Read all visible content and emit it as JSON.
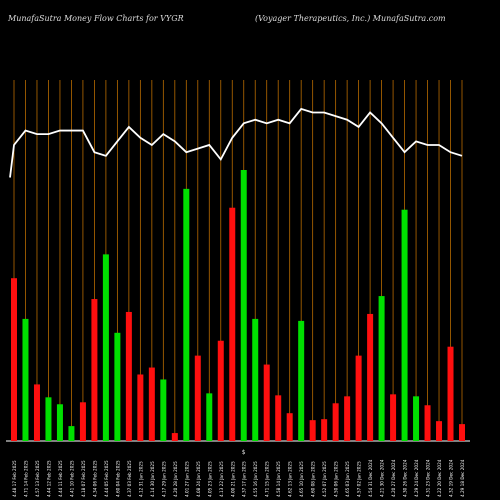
{
  "header": {
    "left": "MunafaSutra  Money Flow  Charts for VYGR",
    "right": "(Voyager Therapeutics, Inc.) MunafaSutra.com"
  },
  "colors": {
    "up": "#00e000",
    "down": "#ff0f0f",
    "line": "#ffffff",
    "grid": "#b86b00",
    "background": "#000000"
  },
  "chart_data": {
    "type": "bar",
    "title": "MunafaSutra  Money Flow  Charts for VYGR",
    "subtitle": "(Voyager Therapeutics, Inc.) MunafaSutra.com",
    "categories": [
      "4.48 17 Feb 2025",
      "4.71 14 Feb 2025",
      "4.57 13 Feb 2025",
      "4.44 12 Feb 2025",
      "4.44 11 Feb 2025",
      "4.41 10 Feb 2025",
      "4.18 07 Feb 2025",
      "4.34 06 Feb 2025",
      "4.44 05 Feb 2025",
      "4.60 04 Feb 2025",
      "4.37 03 Feb 2025",
      "4.12 31 Jan 2025",
      "4.14 30 Jan 2025",
      "4.17 29 Jan 2025",
      "4.20 28 Jan 2025",
      "4.01 27 Jan 2025",
      "4.08 24 Jan 2025",
      "4.05 23 Jan 2025",
      "4.13 22 Jan 2025",
      "4.00 21 Jan 2025",
      "4.37 17 Jan 2025",
      "4.55 16 Jan 2025",
      "4.71 15 Jan 2025",
      "4.58 14 Jan 2025",
      "4.62 13 Jan 2025",
      "4.65 10 Jan 2025",
      "4.60 08 Jan 2025",
      "4.52 07 Jan 2025",
      "4.50 06 Jan 2025",
      "4.65 03 Jan 2025",
      "4.57 02 Jan 2025",
      "4.54 31 Dec 2024",
      "4.21 30 Dec 2024",
      "4.20 27 Dec 2024",
      "4.30 26 Dec 2024",
      "4.29 24 Dec 2024",
      "4.31 23 Dec 2024",
      "4.22 20 Dec 2024",
      "4.32 19 Dec 2024",
      "4.29 18 Dec 2024"
    ],
    "colors": [
      "down",
      "up",
      "down",
      "up",
      "up",
      "up",
      "down",
      "down",
      "up",
      "up",
      "down",
      "down",
      "down",
      "up",
      "down",
      "up",
      "down",
      "up",
      "down",
      "down",
      "up",
      "up",
      "down",
      "down",
      "down",
      "up",
      "down",
      "down",
      "down",
      "down",
      "down",
      "down",
      "up",
      "down",
      "up",
      "up",
      "down",
      "down",
      "down",
      "down"
    ],
    "volume": [
      164,
      123,
      57,
      44,
      37,
      15,
      39,
      143,
      188,
      109,
      130,
      67,
      74,
      62,
      8,
      254,
      86,
      48,
      101,
      235,
      273,
      123,
      77,
      46,
      28,
      121,
      21,
      22,
      38,
      45,
      86,
      128,
      146,
      47,
      233,
      45,
      36,
      20,
      95,
      17
    ],
    "money_flow": [
      0.82,
      0.86,
      0.85,
      0.85,
      0.86,
      0.86,
      0.86,
      0.8,
      0.79,
      0.83,
      0.87,
      0.84,
      0.82,
      0.85,
      0.83,
      0.8,
      0.81,
      0.82,
      0.78,
      0.84,
      0.88,
      0.89,
      0.88,
      0.89,
      0.88,
      0.92,
      0.91,
      0.91,
      0.9,
      0.89,
      0.87,
      0.91,
      0.88,
      0.84,
      0.8,
      0.83,
      0.82,
      0.82,
      0.8,
      0.79
    ],
    "marker": {
      "label": "$",
      "index": 20
    },
    "xlabel": "",
    "ylabel": ""
  }
}
